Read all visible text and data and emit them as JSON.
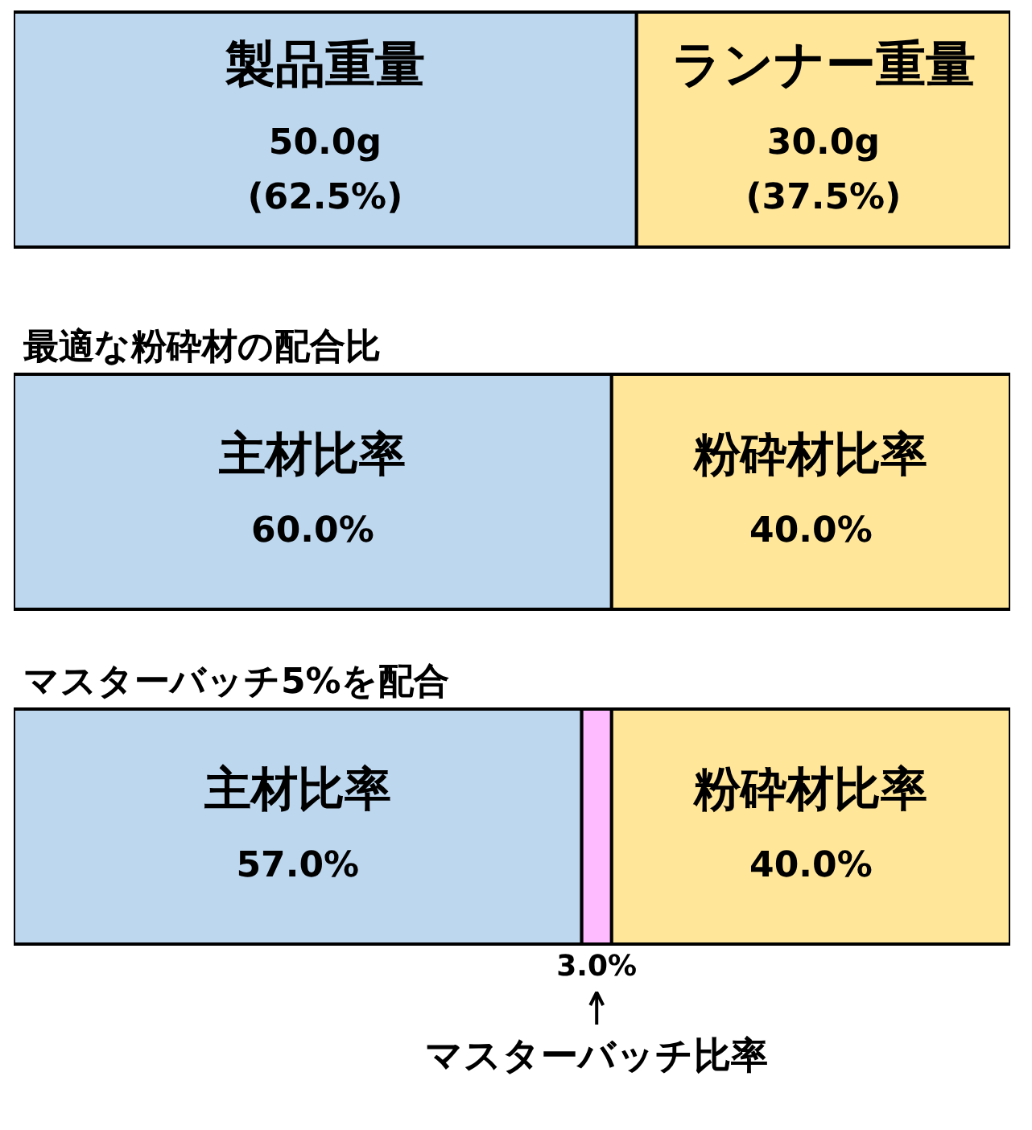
{
  "chart_data": [
    {
      "type": "bar",
      "orientation": "horizontal",
      "stacked": true,
      "tick_labels": false,
      "categories": [
        null
      ],
      "xlim": [
        0,
        80
      ],
      "series": [
        {
          "name": "製品重量",
          "color": "#bdd7ee",
          "values": [
            50.0
          ],
          "value_labels": [
            "50.0g\n(62.5%)"
          ]
        },
        {
          "name": "ランナー重量",
          "color": "#ffe699",
          "values": [
            30.0
          ],
          "value_labels": [
            "30.0g\n(37.5%)"
          ]
        }
      ]
    },
    {
      "type": "bar",
      "orientation": "horizontal",
      "stacked": true,
      "tick_labels": false,
      "title": "最適な粉砕材の配合比",
      "categories": [
        null
      ],
      "xlim": [
        0,
        100
      ],
      "series": [
        {
          "name": "主材比率",
          "color": "#bdd7ee",
          "values": [
            60.0
          ],
          "value_labels": [
            "60.0%"
          ]
        },
        {
          "name": "粉砕材比率",
          "color": "#ffe699",
          "values": [
            40.0
          ],
          "value_labels": [
            "40.0%"
          ]
        }
      ]
    },
    {
      "type": "bar",
      "orientation": "horizontal",
      "stacked": true,
      "tick_labels": false,
      "title": "マスターバッチ5%を配合",
      "categories": [
        null
      ],
      "xlim": [
        0,
        100
      ],
      "series": [
        {
          "name": "主材比率",
          "color": "#bdd7ee",
          "values": [
            57.0
          ],
          "value_labels": [
            "57.0%"
          ]
        },
        {
          "name": "マスターバッチ比率",
          "color": "#ffbbff",
          "values": [
            3.0
          ],
          "value_labels": [
            "3.0%"
          ]
        },
        {
          "name": "粉砕材比率",
          "color": "#ffe699",
          "values": [
            40.0
          ],
          "value_labels": [
            "40.0%"
          ]
        }
      ]
    }
  ]
}
